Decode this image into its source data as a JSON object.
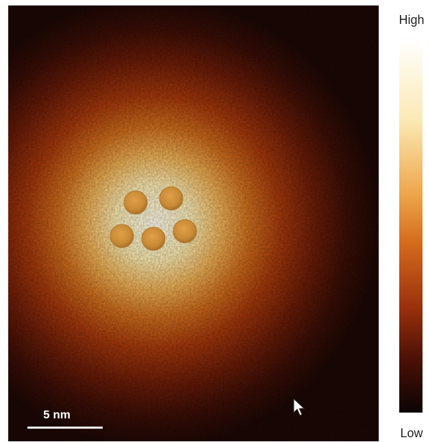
{
  "scale_bar": {
    "label": "5 nm"
  },
  "colorbar": {
    "high": "High",
    "low": "Low"
  }
}
